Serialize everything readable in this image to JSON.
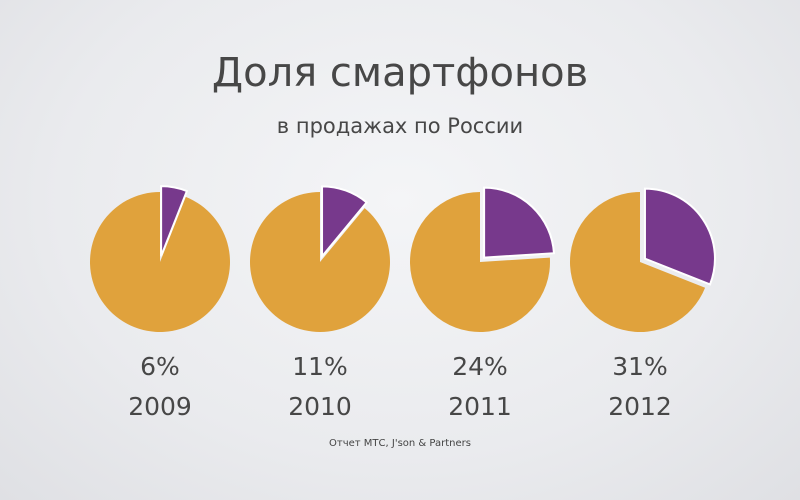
{
  "title": "Доля смартфонов",
  "subtitle": "в продажах по России",
  "source": "Отчет МТС, J'son & Partners",
  "colors": {
    "rest": "#e0a23c",
    "smartphones": "#77398c"
  },
  "chart_data": {
    "type": "pie",
    "charts": [
      {
        "year": "2009",
        "label": "6%",
        "value": 6
      },
      {
        "year": "2010",
        "label": "11%",
        "value": 11
      },
      {
        "year": "2011",
        "label": "24%",
        "value": 24
      },
      {
        "year": "2012",
        "label": "31%",
        "value": 31
      }
    ]
  }
}
